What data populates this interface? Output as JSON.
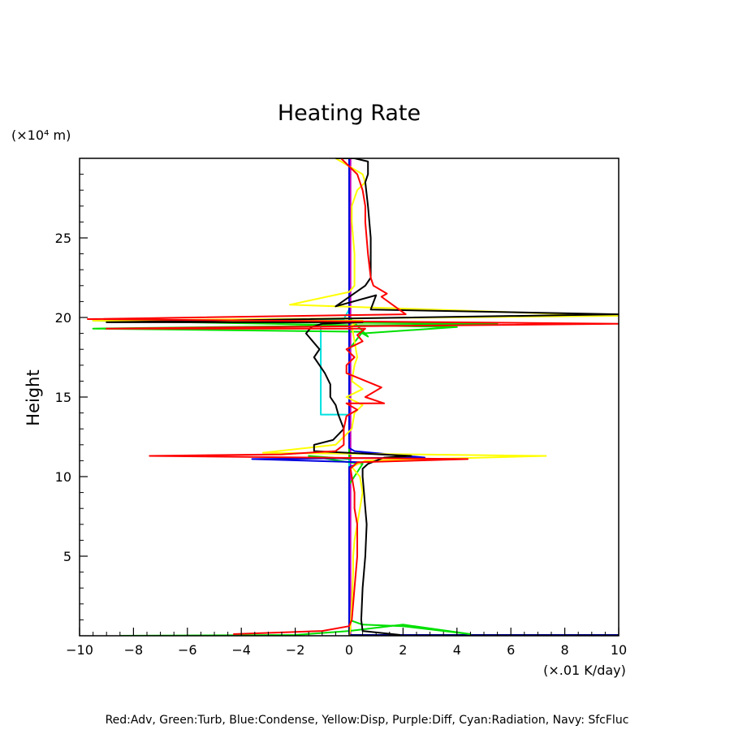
{
  "chart_data": {
    "type": "line",
    "title": "Heating Rate",
    "xlabel": "(×.01 K/day)",
    "ylabel": "Height",
    "yunit": "(×10⁴ m)",
    "xlim": [
      -10,
      10
    ],
    "ylim": [
      0,
      30
    ],
    "xticks": [
      -10,
      -8,
      -6,
      -4,
      -2,
      0,
      2,
      4,
      6,
      8,
      10
    ],
    "yticks": [
      5,
      10,
      15,
      20,
      25
    ],
    "grid": false,
    "legend_text": "Red:Adv, Green:Turb, Blue:Condense, Yellow:Disp, Purple:Diff, Cyan:Radiation, Navy: SfcFluc",
    "series": [
      {
        "name": "Purple:Diff",
        "color": "#c000c0",
        "x": [
          0.05,
          0.05,
          0.05,
          0.05
        ],
        "y": [
          0,
          10,
          20,
          30
        ]
      },
      {
        "name": "Navy: SfcFluc",
        "color": "#000080",
        "x": [
          10,
          0,
          0,
          0
        ],
        "y": [
          0.05,
          0.05,
          15,
          30
        ]
      },
      {
        "name": "Cyan:Radiation",
        "color": "#00e0e0",
        "x": [
          0,
          0,
          -1.05,
          -1.05,
          -0.2,
          0
        ],
        "y": [
          0,
          13.9,
          13.9,
          19.9,
          19.9,
          20.5
        ]
      },
      {
        "name": "Green:Turb",
        "color": "#00e000",
        "x": [
          -8.5,
          -2,
          0,
          2,
          4.5,
          2,
          0.5,
          0,
          0,
          0,
          0.5,
          0,
          -1.5,
          0,
          0,
          0,
          0,
          0.5,
          -9.5,
          5.5,
          -9.5,
          4,
          0.5,
          0.7,
          0,
          0,
          0
        ],
        "y": [
          0,
          0.05,
          0.3,
          0.7,
          0.1,
          0.6,
          0.7,
          1,
          5,
          9.5,
          10.8,
          10.9,
          11.3,
          11.1,
          12,
          15,
          18,
          19.1,
          19.3,
          19.6,
          19.8,
          19.4,
          19.0,
          18.8,
          20,
          25,
          30
        ]
      },
      {
        "name": "Blue:Condense",
        "color": "#0000e0",
        "x": [
          0,
          0,
          0,
          0,
          0,
          0.5,
          -3.6,
          2.8,
          0.2,
          0,
          0,
          0
        ],
        "y": [
          0,
          5,
          9.5,
          10.2,
          10.6,
          10.9,
          11.1,
          11.2,
          11.6,
          11.8,
          20,
          30
        ]
      },
      {
        "name": "Yellow:Disp",
        "color": "#ffff00",
        "x": [
          0,
          0.05,
          0.1,
          0.15,
          0.15,
          0.2,
          0.3,
          0.4,
          0.5,
          0.4,
          0.1,
          0.6,
          7.3,
          -3.2,
          -0.5,
          -0.2,
          0.1,
          0.2,
          0.5,
          -0.1,
          0.5,
          0.1,
          0.2,
          0.3,
          0.2,
          0.1,
          0.2,
          0.3,
          0.5,
          -9.5,
          10,
          -2.2,
          0,
          0.2,
          0.2,
          0.1,
          0.1,
          0.2,
          0.3,
          0.6,
          0.5,
          -0.5
        ],
        "y": [
          0,
          0.5,
          2,
          4,
          5,
          6,
          7,
          8,
          9,
          10,
          10.6,
          11,
          11.3,
          11.5,
          12,
          12.5,
          13,
          14,
          14.5,
          15,
          15.5,
          16,
          17,
          17.5,
          18.5,
          19.5,
          19.6,
          19.7,
          19.8,
          19.8,
          20.1,
          20.8,
          21.6,
          22,
          24,
          26,
          27,
          27.5,
          28,
          28.5,
          29,
          30
        ]
      },
      {
        "name": "Black",
        "color": "#000000",
        "x": [
          1.9,
          0.5,
          0.45,
          0.5,
          0.6,
          0.65,
          0.6,
          0.55,
          0.5,
          0.5,
          0.7,
          1.3,
          2.3,
          -1.3,
          -1.3,
          -0.6,
          -0.2,
          -0.4,
          -0.5,
          -0.7,
          -0.7,
          -0.9,
          -1.1,
          -1.3,
          -1.1,
          -1.6,
          -1.4,
          -1.0,
          0.5,
          -9.0,
          10,
          0.8,
          1.0,
          -0.5,
          0.6,
          0.8,
          0.8,
          0.7,
          0.6,
          0.7,
          0.7,
          0.7,
          0.2,
          -0.5
        ],
        "y": [
          0.05,
          0.3,
          1,
          3,
          5,
          7,
          8,
          9,
          10,
          10.5,
          10.8,
          11.2,
          11.3,
          11.6,
          12,
          12.3,
          13,
          13.9,
          14.5,
          15,
          15.8,
          16.5,
          17,
          17.5,
          18,
          19.0,
          19.4,
          19.6,
          19.7,
          19.7,
          20.2,
          20.5,
          21.4,
          20.7,
          22,
          22.5,
          25,
          27,
          28.5,
          29,
          29.5,
          29.8,
          30,
          30
        ]
      },
      {
        "name": "Red:Adv",
        "color": "#ff0000",
        "x": [
          -4.3,
          -1,
          0,
          0.1,
          0.2,
          0.3,
          0.3,
          0.2,
          0.2,
          0.1,
          0.05,
          0.3,
          4.4,
          -7.4,
          -2.5,
          -0.5,
          -0.2,
          -0.2,
          -0.1,
          0.3,
          -0.1,
          1.3,
          0.6,
          1.2,
          -0.1,
          -0.1,
          0.2,
          -0.1,
          0.5,
          0.3,
          0.6,
          -9.0,
          10,
          -9.7,
          2.1,
          1.2,
          1.4,
          0.9,
          0.8,
          0.7,
          0.6,
          0.6,
          0.5,
          0.3,
          -0.3
        ],
        "y": [
          0.1,
          0.3,
          0.6,
          1,
          3,
          5,
          7,
          8,
          9,
          10,
          10.5,
          10.9,
          11.1,
          11.3,
          11.4,
          11.6,
          12,
          13,
          13.8,
          14.2,
          14.6,
          14.6,
          15,
          15.6,
          16.5,
          17,
          17.5,
          18,
          18.5,
          18.9,
          19.3,
          19.3,
          19.6,
          19.9,
          20.2,
          21.3,
          21.5,
          22,
          22.5,
          24,
          26,
          27,
          28,
          29,
          30
        ]
      }
    ]
  }
}
